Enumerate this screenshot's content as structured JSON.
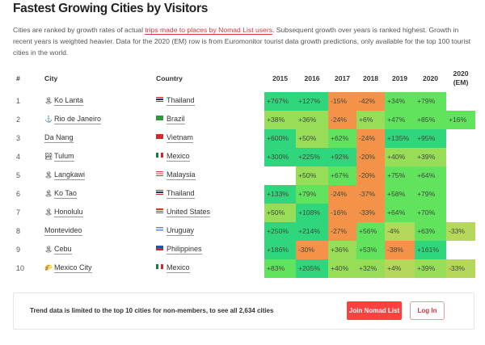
{
  "title": "Fastest Growing Cities by Visitors",
  "description": {
    "before": "Cities are ranked by growth rates of actual ",
    "link": "trips made to places by Nomad List users",
    "after": ". Subsequent growth over years is ranked highest. Growth in recent years is weighted heavier. Data for the 2020 (EM) row is from Euromonitor tourist data growth predictions, only available for the top 100 tourist cities in the world."
  },
  "columns": {
    "rank": "#",
    "city": "City",
    "country": "Country",
    "years": [
      "2015",
      "2016",
      "2017",
      "2018",
      "2019",
      "2020",
      "2020 (EM)"
    ]
  },
  "colors": {
    "D": "#2fd67c",
    "G": "#62e35e",
    "L": "#97dd58",
    "Y": "#b5d85a",
    "O": "#f5924a"
  },
  "rows": [
    {
      "rank": "1",
      "city": "Ko Lanta",
      "icon": "🏝",
      "country": "Thailand",
      "flag": "th",
      "values": [
        "+767%",
        "+127%",
        "-15%",
        "-42%",
        "+34%",
        "+79%",
        ""
      ],
      "levels": [
        "D",
        "D",
        "O",
        "O",
        "G",
        "G",
        ""
      ]
    },
    {
      "rank": "2",
      "city": "Rio de Janeiro",
      "icon": "⚓",
      "country": "Brazil",
      "flag": "br",
      "values": [
        "+38%",
        "+36%",
        "-24%",
        "+6%",
        "+47%",
        "+85%",
        "+16%"
      ],
      "levels": [
        "L",
        "L",
        "O",
        "L",
        "G",
        "G",
        "G"
      ]
    },
    {
      "rank": "3",
      "city": "Da Nang",
      "icon": "",
      "country": "Vietnam",
      "flag": "vn",
      "values": [
        "+600%",
        "+50%",
        "+62%",
        "-24%",
        "+135%",
        "+95%",
        ""
      ],
      "levels": [
        "D",
        "L",
        "G",
        "O",
        "D",
        "D",
        ""
      ]
    },
    {
      "rank": "4",
      "city": "Tulum",
      "icon": "🏞",
      "country": "Mexico",
      "flag": "mx",
      "values": [
        "+300%",
        "+225%",
        "+92%",
        "-20%",
        "+40%",
        "+39%",
        ""
      ],
      "levels": [
        "D",
        "D",
        "D",
        "O",
        "L",
        "L",
        ""
      ]
    },
    {
      "rank": "5",
      "city": "Langkawi",
      "icon": "🏝",
      "country": "Malaysia",
      "flag": "my",
      "values": [
        "",
        "+50%",
        "+67%",
        "-20%",
        "+75%",
        "+64%",
        ""
      ],
      "levels": [
        "",
        "L",
        "G",
        "O",
        "G",
        "G",
        ""
      ]
    },
    {
      "rank": "6",
      "city": "Ko Tao",
      "icon": "🏝",
      "country": "Thailand",
      "flag": "th",
      "values": [
        "+133%",
        "+79%",
        "-24%",
        "-37%",
        "+58%",
        "+79%",
        ""
      ],
      "levels": [
        "D",
        "G",
        "O",
        "O",
        "G",
        "G",
        ""
      ]
    },
    {
      "rank": "7",
      "city": "Honolulu",
      "icon": "🏝",
      "country": "United States",
      "flag": "us",
      "values": [
        "+50%",
        "+108%",
        "-16%",
        "-33%",
        "+64%",
        "+70%",
        ""
      ],
      "levels": [
        "L",
        "D",
        "O",
        "O",
        "G",
        "G",
        ""
      ]
    },
    {
      "rank": "8",
      "city": "Montevideo",
      "icon": "",
      "country": "Uruguay",
      "flag": "uy",
      "values": [
        "+250%",
        "+214%",
        "-27%",
        "+56%",
        "-4%",
        "+63%",
        "-33%"
      ],
      "levels": [
        "D",
        "D",
        "O",
        "G",
        "Y",
        "G",
        "Y"
      ]
    },
    {
      "rank": "9",
      "city": "Cebu",
      "icon": "🏝",
      "country": "Philippines",
      "flag": "ph",
      "values": [
        "+186%",
        "-30%",
        "+36%",
        "+53%",
        "-38%",
        "+161%",
        ""
      ],
      "levels": [
        "D",
        "O",
        "L",
        "G",
        "O",
        "D",
        ""
      ]
    },
    {
      "rank": "10",
      "city": "Mexico City",
      "icon": "🌮",
      "country": "Mexico",
      "flag": "mx",
      "values": [
        "+83%",
        "+205%",
        "+40%",
        "+32%",
        "+4%",
        "+39%",
        "-33%"
      ],
      "levels": [
        "G",
        "D",
        "L",
        "L",
        "Y",
        "L",
        "Y"
      ]
    }
  ],
  "banner": {
    "text": "Trend data is limited to the top 10 cities for non-members, to see all 2,634 cities",
    "join": "Join Nomad List",
    "login": "Log In"
  }
}
